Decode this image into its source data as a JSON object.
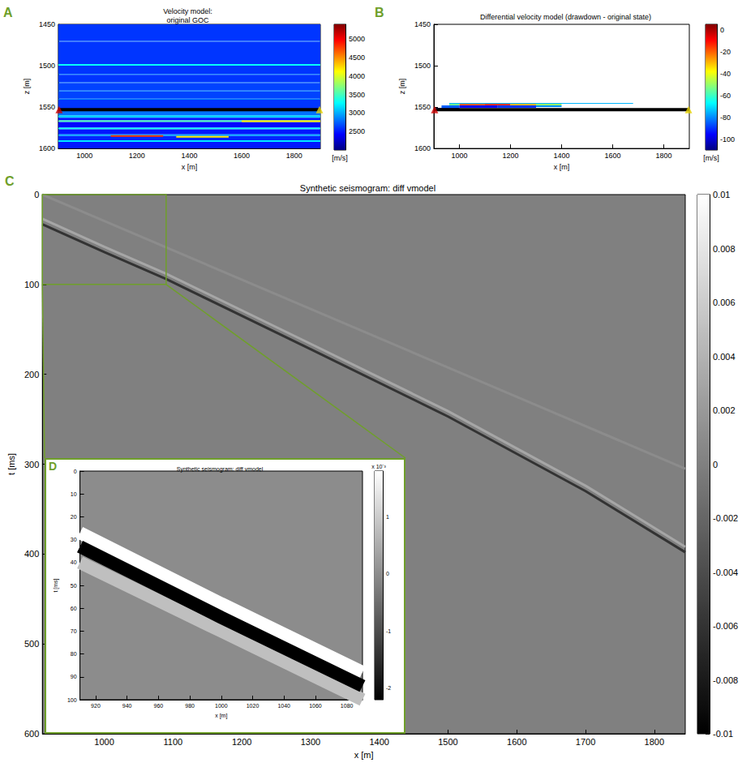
{
  "chart_data": [
    {
      "label": "A",
      "type": "heatmap",
      "title": "Velocity model:\noriginal GOC",
      "xlabel": "x [m]",
      "ylabel": "z [m]",
      "xlim": [
        900,
        1900
      ],
      "ylim": [
        1450,
        1600
      ],
      "xticks": [
        1000,
        1200,
        1400,
        1600,
        1800
      ],
      "yticks": [
        1450,
        1500,
        1550,
        1600
      ],
      "grid": false,
      "marker": "triangle",
      "colorbar": {
        "lim": [
          2000,
          5400
        ],
        "ticks": [
          2500,
          3000,
          3500,
          4000,
          4500,
          5000
        ],
        "label": "[m/s]"
      },
      "cells": [
        [
          900,
          1900,
          1450,
          1470,
          2600
        ],
        [
          900,
          1900,
          1470,
          1471,
          2800
        ],
        [
          900,
          1900,
          1471,
          1498,
          2600
        ],
        [
          900,
          1900,
          1498,
          1500,
          3300
        ],
        [
          900,
          1900,
          1500,
          1510,
          2600
        ],
        [
          900,
          1900,
          1510,
          1511,
          2850
        ],
        [
          900,
          1900,
          1511,
          1520,
          2600
        ],
        [
          900,
          1900,
          1520,
          1521,
          2800
        ],
        [
          900,
          1900,
          1521,
          1530,
          2650
        ],
        [
          900,
          1900,
          1530,
          1531,
          2900
        ],
        [
          900,
          1900,
          1531,
          1540,
          2650
        ],
        [
          900,
          1900,
          1540,
          1541,
          2850
        ],
        [
          900,
          1900,
          1541,
          1553,
          2600
        ],
        [
          900,
          1900,
          1553,
          1560,
          2800
        ],
        [
          900,
          1900,
          1560,
          1563,
          3100
        ],
        [
          900,
          1900,
          1563,
          1566,
          2500
        ],
        [
          900,
          1900,
          1566,
          1568,
          3500
        ],
        [
          900,
          1900,
          1568,
          1575,
          2450
        ],
        [
          900,
          1900,
          1575,
          1577,
          3300
        ],
        [
          900,
          1900,
          1577,
          1583,
          2500
        ],
        [
          900,
          1900,
          1583,
          1585,
          3000
        ],
        [
          900,
          1900,
          1585,
          1590,
          2550
        ],
        [
          900,
          1900,
          1590,
          1592,
          3200
        ],
        [
          900,
          1900,
          1592,
          1600,
          2500
        ],
        [
          1100,
          1300,
          1584,
          1586,
          4800
        ],
        [
          1350,
          1550,
          1585,
          1587,
          4200
        ],
        [
          1600,
          1900,
          1566,
          1568,
          4200
        ]
      ],
      "goc": {
        "x": [
          900,
          1900
        ],
        "z": 1553,
        "color": "#000000",
        "markers": [
          {
            "x": 903,
            "color": "#cc0000"
          },
          {
            "x": 1897,
            "color": "#e6d200"
          }
        ]
      }
    },
    {
      "label": "B",
      "type": "heatmap",
      "title": "Differential velocity model (drawdown - original state)",
      "xlabel": "x [m]",
      "ylabel": "z [m]",
      "xlim": [
        900,
        1900
      ],
      "ylim": [
        1450,
        1600
      ],
      "xticks": [
        1000,
        1200,
        1400,
        1600,
        1800
      ],
      "yticks": [
        1450,
        1500,
        1550,
        1600
      ],
      "grid": false,
      "marker": "triangle",
      "colorbar": {
        "lim": [
          -110,
          5
        ],
        "ticks": [
          0,
          -20,
          -40,
          -60,
          -80,
          -100
        ],
        "label": "[m/s]"
      },
      "cells": [
        [
          960,
          1680,
          1545,
          1546,
          -75
        ],
        [
          960,
          1000,
          1546,
          1548,
          -55
        ],
        [
          1000,
          1100,
          1546,
          1548,
          -20
        ],
        [
          1100,
          1200,
          1546,
          1548,
          -15
        ],
        [
          1200,
          1300,
          1546,
          1548,
          -30
        ],
        [
          1300,
          1400,
          1546,
          1548,
          -50
        ],
        [
          930,
          1000,
          1548,
          1551,
          -85
        ],
        [
          1000,
          1150,
          1548,
          1551,
          -95
        ],
        [
          1150,
          1300,
          1548,
          1551,
          -90
        ],
        [
          1300,
          1400,
          1548,
          1550,
          -80
        ],
        [
          910,
          1000,
          1551,
          1552,
          -100
        ]
      ],
      "goc": {
        "x": [
          900,
          1900
        ],
        "z": 1553,
        "color": "#000000",
        "markers": [
          {
            "x": 903,
            "color": "#cc0000"
          },
          {
            "x": 1897,
            "color": "#e6d200"
          }
        ]
      }
    },
    {
      "label": "C",
      "type": "seismogram",
      "title": "Synthetic seismogram: diff vmodel",
      "xlabel": "x [m]",
      "ylabel": "t [ms]",
      "xlim": [
        910,
        1845
      ],
      "ylim": [
        0,
        600
      ],
      "xticks": [
        1000,
        1100,
        1200,
        1300,
        1400,
        1500,
        1600,
        1700,
        1800
      ],
      "yticks": [
        0,
        100,
        200,
        300,
        400,
        500,
        600
      ],
      "grid": false,
      "background_amplitude": 0,
      "colorbar": {
        "lim": [
          -0.01,
          0.01
        ],
        "ticks": [
          0.01,
          0.008,
          0.006,
          0.004,
          0.002,
          0,
          -0.002,
          -0.004,
          -0.006,
          -0.008,
          -0.01
        ]
      },
      "events": [
        {
          "amplitude": 0.001,
          "x": [
            910,
            1845
          ],
          "t": [
            0,
            305
          ]
        },
        {
          "amplitude": 0.003,
          "x": [
            910,
            1000,
            1090,
            1300,
            1500,
            1700,
            1845
          ],
          "t": [
            27,
            58,
            88,
            166,
            241,
            324,
            392
          ]
        },
        {
          "amplitude": -0.006,
          "x": [
            910,
            1000,
            1090,
            1300,
            1500,
            1700,
            1845
          ],
          "t": [
            33,
            64,
            94,
            172,
            247,
            330,
            398
          ]
        }
      ]
    },
    {
      "label": "D",
      "type": "seismogram",
      "title": "Synthetic seismogram: diff vmodel",
      "xlabel": "x [m]",
      "ylabel": "t [ms]",
      "xlim": [
        910,
        1090
      ],
      "ylim": [
        0,
        100
      ],
      "xticks": [
        920,
        940,
        960,
        980,
        1000,
        1020,
        1040,
        1060,
        1080
      ],
      "yticks": [
        0,
        10,
        20,
        30,
        40,
        50,
        60,
        70,
        80,
        90,
        100
      ],
      "grid": false,
      "background_amplitude": 0,
      "colorbar": {
        "lim": [
          -2.2,
          1.8
        ],
        "ticks": [
          1,
          0,
          -1,
          -2
        ],
        "label": "x 10⁻³"
      },
      "events": [
        {
          "amplitude": 0.8,
          "x": [
            910,
            1000,
            1090
          ],
          "t": [
            40,
            70,
            100
          ]
        },
        {
          "amplitude": 1.8,
          "x": [
            910,
            1000,
            1090
          ],
          "t": [
            27,
            58,
            88
          ]
        },
        {
          "amplitude": -2.2,
          "x": [
            910,
            1000,
            1090
          ],
          "t": [
            33,
            64,
            94
          ]
        }
      ]
    }
  ]
}
